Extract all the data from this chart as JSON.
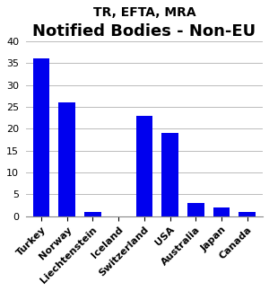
{
  "title": "Notified Bodies - Non-EU",
  "subtitle": "TR, EFTA, MRA",
  "categories": [
    "Turkey",
    "Norway",
    "Liechtenstein",
    "Iceland",
    "Switzerland",
    "USA",
    "Australia",
    "Japan",
    "Canada"
  ],
  "values": [
    36,
    26,
    1,
    0,
    23,
    19,
    3,
    2,
    1
  ],
  "bar_color": "#0000ee",
  "ylim": [
    0,
    40
  ],
  "yticks": [
    0,
    5,
    10,
    15,
    20,
    25,
    30,
    35,
    40
  ],
  "title_fontsize": 13,
  "subtitle_fontsize": 10,
  "tick_fontsize": 8,
  "background_color": "#ffffff"
}
